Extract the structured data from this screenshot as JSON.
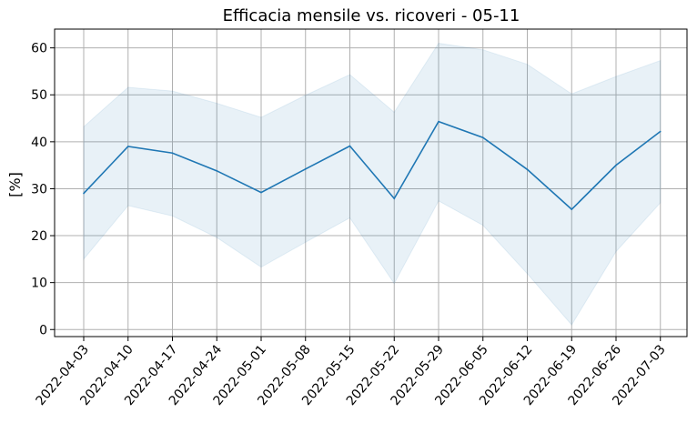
{
  "chart_data": {
    "type": "line",
    "title": "Efficacia mensile vs. ricoveri - 05-11",
    "xlabel": "",
    "ylabel": "[%]",
    "x": [
      "2022-04-03",
      "2022-04-10",
      "2022-04-17",
      "2022-04-24",
      "2022-05-01",
      "2022-05-08",
      "2022-05-15",
      "2022-05-22",
      "2022-05-29",
      "2022-06-05",
      "2022-06-12",
      "2022-06-19",
      "2022-06-26",
      "2022-07-03"
    ],
    "series": [
      {
        "values": [
          29.0,
          39.0,
          37.6,
          33.8,
          29.2,
          34.2,
          39.1,
          27.9,
          44.3,
          40.9,
          34.1,
          25.6,
          35.0,
          42.2
        ],
        "lower": [
          15.0,
          26.4,
          24.2,
          19.6,
          13.3,
          18.6,
          23.8,
          9.8,
          27.4,
          22.2,
          11.9,
          1.0,
          16.6,
          27.0
        ],
        "upper": [
          43.2,
          51.6,
          50.8,
          48.2,
          45.2,
          49.9,
          54.3,
          46.3,
          61.0,
          59.6,
          56.5,
          50.2,
          53.9,
          57.3
        ],
        "color": "#1f77b4",
        "band_color": "#1f77b4"
      }
    ],
    "ylim": [
      -1.5,
      64
    ],
    "yticks": [
      0,
      10,
      20,
      30,
      40,
      50,
      60
    ],
    "grid": true,
    "legend": "none"
  }
}
